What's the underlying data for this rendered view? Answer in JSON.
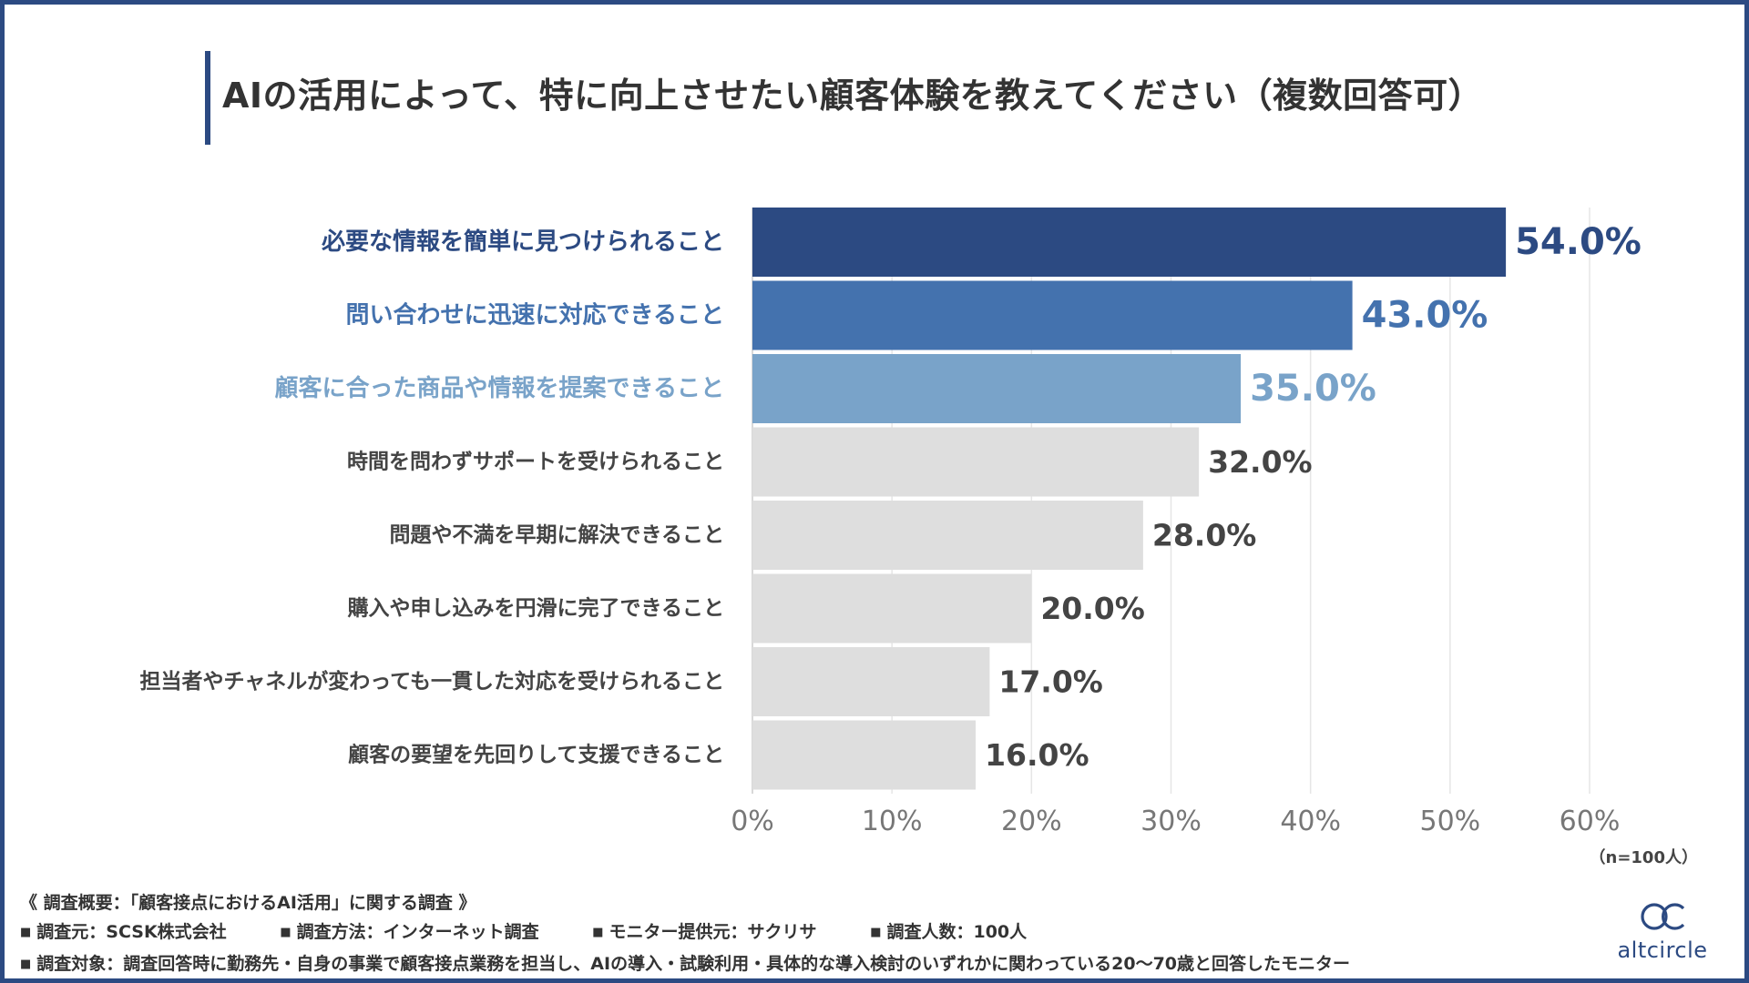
{
  "title": "AIの活用によって、特に向上させたい顧客体験を教えてください（複数回答可）",
  "chart_data": {
    "type": "bar",
    "orientation": "horizontal",
    "categories": [
      "必要な情報を簡単に見つけられること",
      "問い合わせに迅速に対応できること",
      "顧客に合った商品や情報を提案できること",
      "時間を問わずサポートを受けられること",
      "問題や不満を早期に解決できること",
      "購入や申し込みを円滑に完了できること",
      "担当者やチャネルが変わっても一貫した対応を受けられること",
      "顧客の要望を先回りして支援できること"
    ],
    "values": [
      54.0,
      43.0,
      35.0,
      32.0,
      28.0,
      20.0,
      17.0,
      16.0
    ],
    "value_labels": [
      "54.0%",
      "43.0%",
      "35.0%",
      "32.0%",
      "28.0%",
      "20.0%",
      "17.0%",
      "16.0%"
    ],
    "colors": [
      "#2c4a82",
      "#4472ae",
      "#79a3c9",
      "#dedede",
      "#dedede",
      "#dedede",
      "#dedede",
      "#dedede"
    ],
    "label_colors": [
      "#2c4a82",
      "#4472ae",
      "#79a3c9",
      "#444444",
      "#444444",
      "#444444",
      "#444444",
      "#444444"
    ],
    "xlim": [
      0,
      60
    ],
    "xticks": [
      "0%",
      "10%",
      "20%",
      "30%",
      "40%",
      "50%",
      "60%"
    ],
    "grid": true,
    "note": "（n=100人）"
  },
  "footer": {
    "heading": "《 調査概要：「顧客接点におけるAI活用」に関する調査 》",
    "bullet": "■",
    "items": [
      "調査元：SCSK株式会社",
      "調査方法：インターネット調査",
      "モニター提供元：サクリサ",
      "調査人数：100人"
    ],
    "target": "調査対象：調査回答時に勤務先・自身の事業で顧客接点業務を担当し、AIの導入・試験利用・具体的な導入検討のいずれかに関わっている20〜70歳と回答したモニター"
  },
  "logo": {
    "text": "altcircle",
    "icon": "double-circle-logo-icon"
  }
}
